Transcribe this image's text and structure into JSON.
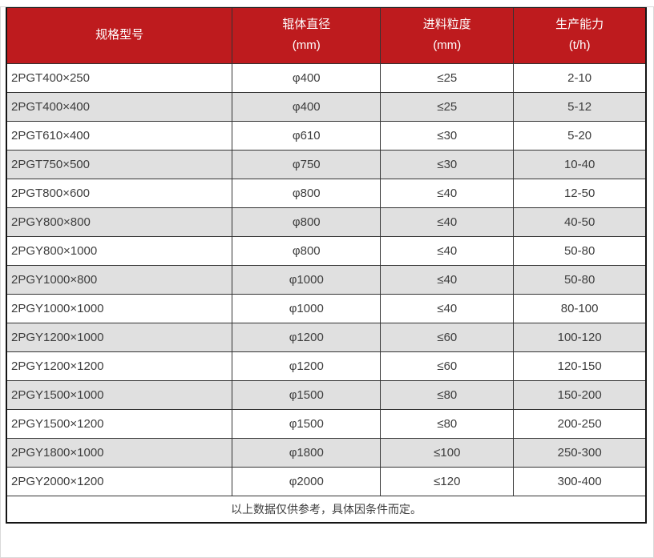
{
  "colors": {
    "header_bg": "#be1b1e",
    "header_text": "#ffffff",
    "row_bg": "#ffffff",
    "row_alt_bg": "#e0e0e0",
    "border": "#333333",
    "outer_border": "#141414",
    "text": "#3d3d3d"
  },
  "chart_data": {
    "type": "table",
    "columns": [
      {
        "label": "规格型号",
        "unit": ""
      },
      {
        "label": "辊体直径",
        "unit": "(mm)"
      },
      {
        "label": "进料粒度",
        "unit": "(mm)"
      },
      {
        "label": "生产能力",
        "unit": "(t/h)"
      }
    ],
    "column_widths_pct": [
      35.3,
      23.2,
      20.8,
      20.7
    ],
    "rows": [
      [
        "2PGT400×250",
        "φ400",
        "≤25",
        "2-10"
      ],
      [
        "2PGT400×400",
        "φ400",
        "≤25",
        "5-12"
      ],
      [
        "2PGT610×400",
        "φ610",
        "≤30",
        "5-20"
      ],
      [
        "2PGT750×500",
        "φ750",
        "≤30",
        "10-40"
      ],
      [
        "2PGT800×600",
        "φ800",
        "≤40",
        "12-50"
      ],
      [
        "2PGY800×800",
        "φ800",
        "≤40",
        "40-50"
      ],
      [
        "2PGY800×1000",
        "φ800",
        "≤40",
        "50-80"
      ],
      [
        "2PGY1000×800",
        "φ1000",
        "≤40",
        "50-80"
      ],
      [
        "2PGY1000×1000",
        "φ1000",
        "≤40",
        "80-100"
      ],
      [
        "2PGY1200×1000",
        "φ1200",
        "≤60",
        "100-120"
      ],
      [
        "2PGY1200×1200",
        "φ1200",
        "≤60",
        "120-150"
      ],
      [
        "2PGY1500×1000",
        "φ1500",
        "≤80",
        "150-200"
      ],
      [
        "2PGY1500×1200",
        "φ1500",
        "≤80",
        "200-250"
      ],
      [
        "2PGY1800×1000",
        "φ1800",
        "≤100",
        "250-300"
      ],
      [
        "2PGY2000×1200",
        "φ2000",
        "≤120",
        "300-400"
      ]
    ],
    "footer_note": "以上数据仅供参考，具体因条件而定。"
  }
}
